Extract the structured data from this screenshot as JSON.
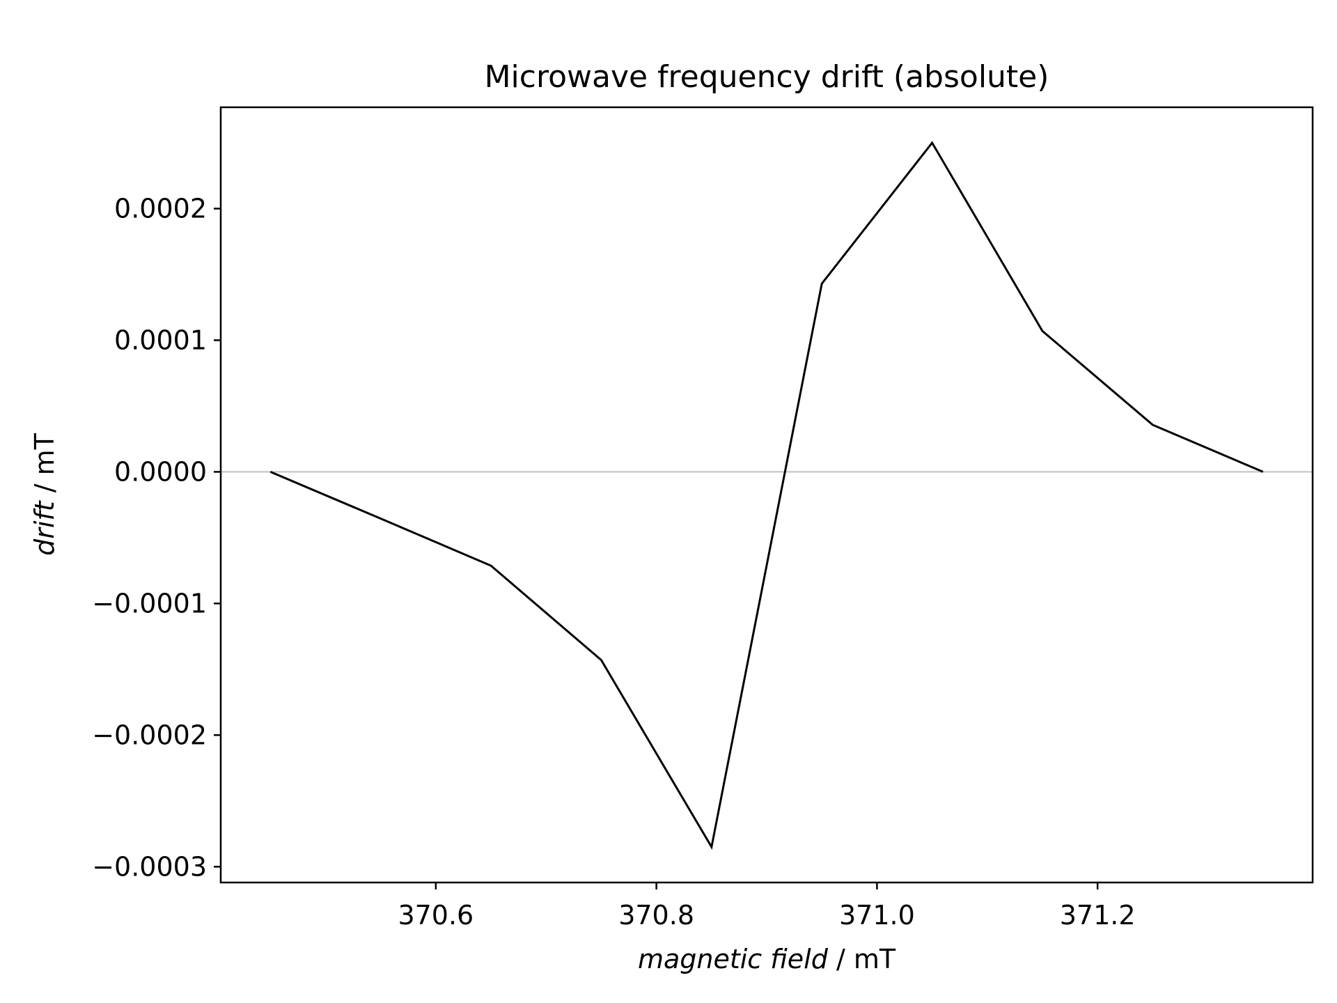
{
  "chart_data": {
    "type": "line",
    "title": "Microwave frequency drift (absolute)",
    "xlabel": {
      "italic": "magnetic field",
      "unit": " / mT"
    },
    "ylabel": {
      "italic": "drift",
      "unit": " / mT"
    },
    "xlim": [
      370.405,
      371.395
    ],
    "ylim": [
      -0.000312,
      0.000277
    ],
    "xticks": [
      {
        "value": 370.6,
        "label": "370.6"
      },
      {
        "value": 370.8,
        "label": "370.8"
      },
      {
        "value": 371.0,
        "label": "371.0"
      },
      {
        "value": 371.2,
        "label": "371.2"
      }
    ],
    "yticks": [
      {
        "value": 0.0002,
        "label": "0.0002"
      },
      {
        "value": 0.0001,
        "label": "0.0001"
      },
      {
        "value": 0.0,
        "label": "0.0000"
      },
      {
        "value": -0.0001,
        "label": "−0.0001"
      },
      {
        "value": -0.0002,
        "label": "−0.0002"
      },
      {
        "value": -0.0003,
        "label": "−0.0003"
      }
    ],
    "zero_line": {
      "value": 0.0,
      "color": "#cccccc"
    },
    "grid": false,
    "series": [
      {
        "color": "#000000",
        "x": [
          370.45,
          370.55,
          370.65,
          370.75,
          370.85,
          370.95,
          371.05,
          371.15,
          371.25,
          371.35
        ],
        "y": [
          0.0,
          -3.55e-05,
          -7.13e-05,
          -0.000143,
          -0.000285,
          0.000143,
          0.00025,
          0.000107,
          3.57e-05,
          0.0
        ]
      }
    ]
  }
}
